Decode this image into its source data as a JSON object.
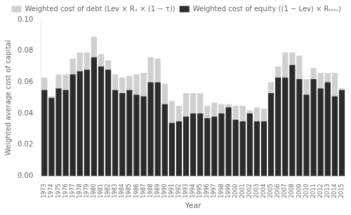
{
  "chart_data": {
    "type": "bar",
    "stacked": true,
    "xlabel": "Year",
    "ylabel": "Weighted average cost of capital",
    "categories": [
      "1973",
      "1974",
      "1975",
      "1976",
      "1977",
      "1978",
      "1979",
      "1980",
      "1981",
      "1982",
      "1983",
      "1984",
      "1985",
      "1986",
      "1987",
      "1988",
      "1989",
      "1990",
      "1991",
      "1992",
      "1993",
      "1994",
      "1995",
      "1996",
      "1997",
      "1998",
      "1999",
      "2000",
      "2001",
      "2002",
      "2003",
      "2004",
      "2005",
      "2006",
      "2007",
      "2008",
      "2009",
      "2010",
      "2011",
      "2012",
      "2013",
      "2014",
      "2015"
    ],
    "series": [
      {
        "name": "Weighted cost of equity ((1 − Lev) × Rₜᵢᵣₘ)",
        "color": "#2b2b2b",
        "values": [
          0.055,
          0.05,
          0.056,
          0.055,
          0.065,
          0.067,
          0.068,
          0.076,
          0.07,
          0.068,
          0.055,
          0.053,
          0.055,
          0.052,
          0.051,
          0.06,
          0.06,
          0.046,
          0.034,
          0.035,
          0.038,
          0.04,
          0.04,
          0.037,
          0.038,
          0.04,
          0.044,
          0.036,
          0.035,
          0.04,
          0.035,
          0.035,
          0.053,
          0.063,
          0.063,
          0.071,
          0.062,
          0.052,
          0.062,
          0.056,
          0.06,
          0.051,
          0.055
        ]
      },
      {
        "name": "Weighted cost of debt (Lev × Rₓ × (1 − τ))",
        "color": "#d0d0d0",
        "values": [
          0.008,
          0.001,
          0.009,
          0.01,
          0.01,
          0.012,
          0.011,
          0.013,
          0.008,
          0.006,
          0.01,
          0.01,
          0.009,
          0.013,
          0.015,
          0.016,
          0.015,
          0.013,
          0.014,
          0.01,
          0.015,
          0.013,
          0.013,
          0.008,
          0.009,
          0.006,
          0.002,
          0.009,
          0.01,
          0.002,
          0.009,
          0.008,
          0.007,
          0.007,
          0.016,
          0.008,
          0.015,
          0.01,
          0.007,
          0.01,
          0.006,
          0.015,
          0.001
        ]
      }
    ],
    "ylim": [
      0.0,
      0.1
    ],
    "yticks": [
      {
        "value": 0.0,
        "label": "0.00"
      },
      {
        "value": 0.02,
        "label": "0.02"
      },
      {
        "value": 0.04,
        "label": "0.04"
      },
      {
        "value": 0.06,
        "label": "0.06"
      },
      {
        "value": 0.08,
        "label": "0.08"
      },
      {
        "value": 0.1,
        "label": "0.10"
      }
    ],
    "grid": false,
    "legend": "upper right"
  }
}
